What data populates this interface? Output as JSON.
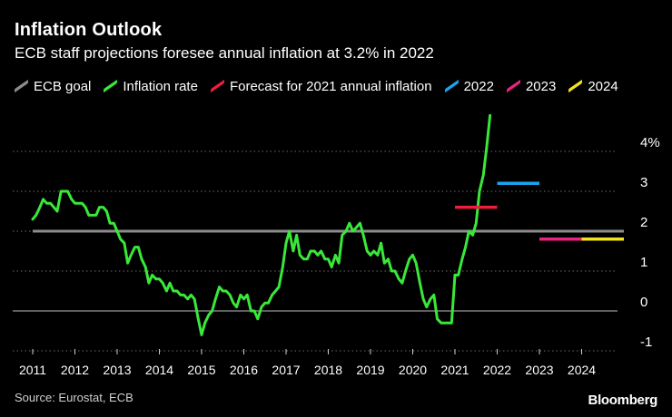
{
  "header": {
    "title": "Inflation Outlook",
    "subtitle": "ECB staff projections foresee annual inflation at 3.2% in 2022"
  },
  "footer": {
    "source": "Source: Eurostat, ECB",
    "logo": "Bloomberg"
  },
  "colors": {
    "background": "#000000",
    "ecb_goal": "#8c8c8c",
    "inflation": "#39e839",
    "forecast_2021": "#f01c3c",
    "y2022": "#1aa3ef",
    "y2023": "#e5257f",
    "y2024": "#f2e31a",
    "grid": "#6a6a6a",
    "text": "#ffffff"
  },
  "chart_data": {
    "type": "line",
    "title": "Inflation Outlook",
    "subtitle": "ECB staff projections foresee annual inflation at 3.2% in 2022",
    "xlim": [
      2011,
      2025
    ],
    "ylim": [
      -1,
      4
    ],
    "x_ticks": [
      "2011",
      "2012",
      "2013",
      "2014",
      "2015",
      "2016",
      "2017",
      "2018",
      "2019",
      "2020",
      "2021",
      "2022",
      "2023",
      "2024"
    ],
    "y_ticks": [
      "4%",
      "3",
      "2",
      "1",
      "0",
      "-1"
    ],
    "y_tick_values": [
      4,
      3,
      2,
      1,
      0,
      -1
    ],
    "grid": "horizontal dotted",
    "legend": [
      {
        "name": "ECB goal",
        "color": "#8c8c8c"
      },
      {
        "name": "Inflation rate",
        "color": "#39e839"
      },
      {
        "name": "Forecast for 2021 annual inflation",
        "color": "#f01c3c"
      },
      {
        "name": "2022",
        "color": "#1aa3ef"
      },
      {
        "name": "2023",
        "color": "#e5257f"
      },
      {
        "name": "2024",
        "color": "#f2e31a"
      }
    ],
    "reference_line": {
      "name": "ECB goal",
      "y": 2.0,
      "x": [
        2011,
        2025
      ]
    },
    "series": [
      {
        "name": "Inflation rate",
        "points": [
          [
            2011.0,
            2.3
          ],
          [
            2011.08,
            2.4
          ],
          [
            2011.17,
            2.6
          ],
          [
            2011.25,
            2.8
          ],
          [
            2011.33,
            2.7
          ],
          [
            2011.42,
            2.7
          ],
          [
            2011.5,
            2.6
          ],
          [
            2011.58,
            2.5
          ],
          [
            2011.67,
            3.0
          ],
          [
            2011.75,
            3.0
          ],
          [
            2011.83,
            3.0
          ],
          [
            2011.92,
            2.8
          ],
          [
            2012.0,
            2.7
          ],
          [
            2012.08,
            2.7
          ],
          [
            2012.17,
            2.7
          ],
          [
            2012.25,
            2.6
          ],
          [
            2012.33,
            2.4
          ],
          [
            2012.42,
            2.4
          ],
          [
            2012.5,
            2.4
          ],
          [
            2012.58,
            2.6
          ],
          [
            2012.67,
            2.6
          ],
          [
            2012.75,
            2.5
          ],
          [
            2012.83,
            2.2
          ],
          [
            2012.92,
            2.2
          ],
          [
            2013.0,
            2.0
          ],
          [
            2013.08,
            1.8
          ],
          [
            2013.17,
            1.7
          ],
          [
            2013.25,
            1.2
          ],
          [
            2013.33,
            1.4
          ],
          [
            2013.42,
            1.6
          ],
          [
            2013.5,
            1.6
          ],
          [
            2013.58,
            1.3
          ],
          [
            2013.67,
            1.1
          ],
          [
            2013.75,
            0.7
          ],
          [
            2013.83,
            0.9
          ],
          [
            2013.92,
            0.8
          ],
          [
            2014.0,
            0.8
          ],
          [
            2014.08,
            0.7
          ],
          [
            2014.17,
            0.5
          ],
          [
            2014.25,
            0.7
          ],
          [
            2014.33,
            0.5
          ],
          [
            2014.42,
            0.5
          ],
          [
            2014.5,
            0.4
          ],
          [
            2014.58,
            0.4
          ],
          [
            2014.67,
            0.3
          ],
          [
            2014.75,
            0.4
          ],
          [
            2014.83,
            0.3
          ],
          [
            2014.92,
            -0.2
          ],
          [
            2015.0,
            -0.6
          ],
          [
            2015.08,
            -0.3
          ],
          [
            2015.17,
            -0.1
          ],
          [
            2015.25,
            0.0
          ],
          [
            2015.33,
            0.3
          ],
          [
            2015.42,
            0.6
          ],
          [
            2015.5,
            0.5
          ],
          [
            2015.58,
            0.5
          ],
          [
            2015.67,
            0.4
          ],
          [
            2015.75,
            0.2
          ],
          [
            2015.83,
            0.1
          ],
          [
            2015.92,
            0.4
          ],
          [
            2016.0,
            0.3
          ],
          [
            2016.08,
            0.4
          ],
          [
            2016.17,
            0.0
          ],
          [
            2016.25,
            0.0
          ],
          [
            2016.33,
            -0.2
          ],
          [
            2016.42,
            0.1
          ],
          [
            2016.5,
            0.2
          ],
          [
            2016.58,
            0.2
          ],
          [
            2016.67,
            0.4
          ],
          [
            2016.75,
            0.5
          ],
          [
            2016.83,
            0.6
          ],
          [
            2016.92,
            1.1
          ],
          [
            2017.0,
            1.7
          ],
          [
            2017.08,
            2.0
          ],
          [
            2017.17,
            1.5
          ],
          [
            2017.25,
            1.9
          ],
          [
            2017.33,
            1.4
          ],
          [
            2017.42,
            1.3
          ],
          [
            2017.5,
            1.3
          ],
          [
            2017.58,
            1.5
          ],
          [
            2017.67,
            1.5
          ],
          [
            2017.75,
            1.4
          ],
          [
            2017.83,
            1.5
          ],
          [
            2017.92,
            1.3
          ],
          [
            2018.0,
            1.3
          ],
          [
            2018.08,
            1.1
          ],
          [
            2018.17,
            1.4
          ],
          [
            2018.25,
            1.2
          ],
          [
            2018.33,
            1.9
          ],
          [
            2018.42,
            2.0
          ],
          [
            2018.5,
            2.2
          ],
          [
            2018.58,
            2.0
          ],
          [
            2018.67,
            2.1
          ],
          [
            2018.75,
            2.2
          ],
          [
            2018.83,
            1.9
          ],
          [
            2018.92,
            1.5
          ],
          [
            2019.0,
            1.4
          ],
          [
            2019.08,
            1.5
          ],
          [
            2019.17,
            1.4
          ],
          [
            2019.25,
            1.7
          ],
          [
            2019.33,
            1.2
          ],
          [
            2019.42,
            1.3
          ],
          [
            2019.5,
            1.0
          ],
          [
            2019.58,
            1.0
          ],
          [
            2019.67,
            0.8
          ],
          [
            2019.75,
            0.7
          ],
          [
            2019.83,
            1.0
          ],
          [
            2019.92,
            1.3
          ],
          [
            2020.0,
            1.4
          ],
          [
            2020.08,
            1.2
          ],
          [
            2020.17,
            0.7
          ],
          [
            2020.25,
            0.3
          ],
          [
            2020.33,
            0.1
          ],
          [
            2020.42,
            0.3
          ],
          [
            2020.5,
            0.4
          ],
          [
            2020.58,
            -0.2
          ],
          [
            2020.67,
            -0.3
          ],
          [
            2020.75,
            -0.3
          ],
          [
            2020.83,
            -0.3
          ],
          [
            2020.92,
            -0.3
          ],
          [
            2021.0,
            0.9
          ],
          [
            2021.08,
            0.9
          ],
          [
            2021.17,
            1.3
          ],
          [
            2021.25,
            1.6
          ],
          [
            2021.33,
            2.0
          ],
          [
            2021.42,
            1.9
          ],
          [
            2021.5,
            2.2
          ],
          [
            2021.58,
            3.0
          ],
          [
            2021.67,
            3.4
          ],
          [
            2021.75,
            4.1
          ],
          [
            2021.83,
            4.9
          ]
        ]
      }
    ],
    "forecasts": [
      {
        "name": "Forecast for 2021 annual inflation",
        "value": 2.6,
        "x": [
          2021.0,
          2022.0
        ]
      },
      {
        "name": "2022",
        "value": 3.2,
        "x": [
          2022.0,
          2023.0
        ]
      },
      {
        "name": "2023",
        "value": 1.8,
        "x": [
          2023.0,
          2024.0
        ]
      },
      {
        "name": "2024",
        "value": 1.8,
        "x": [
          2024.0,
          2025.0
        ]
      }
    ]
  }
}
